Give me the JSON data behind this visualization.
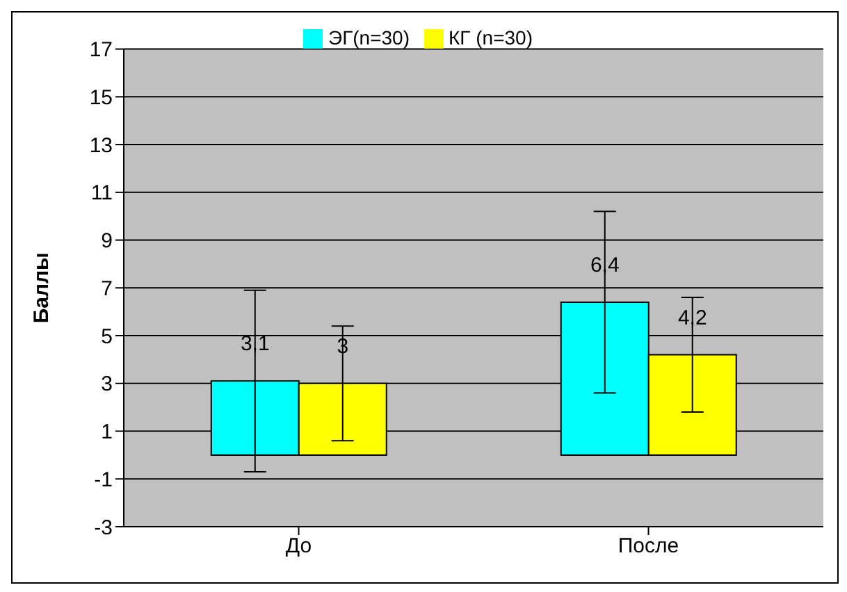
{
  "chart_data": {
    "type": "bar",
    "ylabel": "Баллы",
    "categories": [
      "До",
      "После"
    ],
    "series": [
      {
        "name": "ЭГ(n=30)",
        "color": "#00ffff",
        "values": [
          3.1,
          6.4
        ],
        "value_labels": [
          "3,1",
          "6,4"
        ],
        "errors": [
          3.8,
          3.8
        ]
      },
      {
        "name": "КГ (n=30)",
        "color": "#ffff00",
        "values": [
          3,
          4.2
        ],
        "value_labels": [
          "3",
          "4,2"
        ],
        "errors": [
          2.4,
          2.4
        ]
      }
    ],
    "ylim": [
      -3,
      17
    ],
    "yticks": [
      -3,
      -1,
      1,
      3,
      5,
      7,
      9,
      11,
      13,
      15,
      17
    ],
    "grid": "y",
    "legend": "top"
  }
}
